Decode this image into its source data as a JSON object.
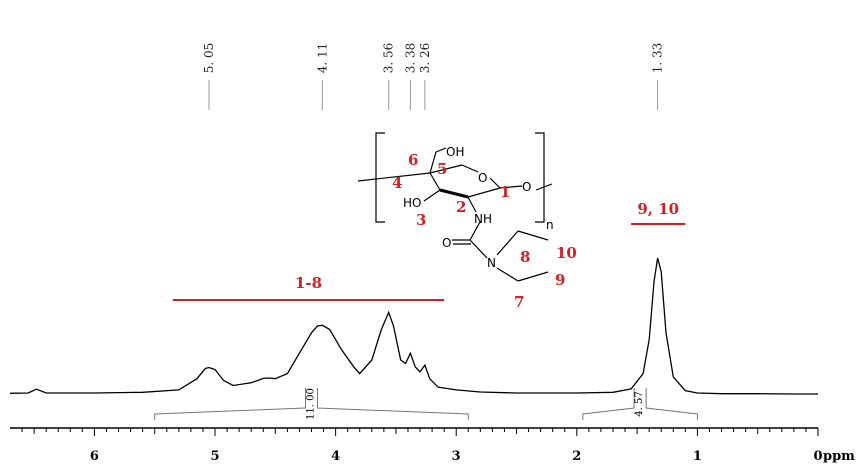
{
  "colors": {
    "spectrum": "#000000",
    "annotation": "#d42020",
    "peak_tick": "#999999"
  },
  "chart_data": {
    "type": "line",
    "title": "",
    "xlabel": "ppm",
    "ylabel": "",
    "x_reversed": true,
    "xlim": [
      6.7,
      0.0
    ],
    "x_ticks": [
      "6",
      "5",
      "4",
      "3",
      "2",
      "1",
      "0"
    ],
    "peak_labels": [
      "5. 05",
      "4. 11",
      "3. 56",
      "3. 38",
      "3. 26",
      "1. 33"
    ],
    "peak_positions": [
      5.05,
      4.11,
      3.56,
      3.38,
      3.26,
      1.33
    ],
    "integrals": [
      {
        "from": 5.5,
        "to": 2.9,
        "value_label": "11. 00",
        "value": 11.0
      },
      {
        "from": 1.95,
        "to": 1.0,
        "value_label": "4. 57",
        "value": 4.57
      }
    ],
    "annotations": [
      {
        "label": "1-8",
        "from": 5.35,
        "to": 3.1
      },
      {
        "label": "9, 10",
        "from": 1.55,
        "to": 1.1
      }
    ],
    "series": [
      {
        "x": [
          6.7,
          6.55,
          6.48,
          6.4,
          6.0,
          5.6,
          5.3,
          5.15,
          5.08,
          5.05,
          5.0,
          4.93,
          4.85,
          4.7,
          4.6,
          4.55,
          4.5,
          4.4,
          4.3,
          4.2,
          4.15,
          4.11,
          4.05,
          3.95,
          3.85,
          3.8,
          3.7,
          3.62,
          3.56,
          3.52,
          3.46,
          3.42,
          3.38,
          3.34,
          3.3,
          3.26,
          3.22,
          3.15,
          3.0,
          2.8,
          2.5,
          2.0,
          1.7,
          1.55,
          1.45,
          1.4,
          1.36,
          1.33,
          1.3,
          1.26,
          1.2,
          1.1,
          1.0,
          0.8,
          0.5,
          0.2,
          0.0
        ],
        "y": [
          0.2,
          0.3,
          1.4,
          0.3,
          0.3,
          0.5,
          1.2,
          4.5,
          7.5,
          7.8,
          7.2,
          4.0,
          2.5,
          3.3,
          4.6,
          4.7,
          4.5,
          6.0,
          12.0,
          18.0,
          20.0,
          20.2,
          19.0,
          13.0,
          8.0,
          6.0,
          10.0,
          19.0,
          24.0,
          20.0,
          10.0,
          9.0,
          12.0,
          8.0,
          6.5,
          8.5,
          4.5,
          2.0,
          1.2,
          0.6,
          0.3,
          0.3,
          0.5,
          1.5,
          6.0,
          16.0,
          33.0,
          40.0,
          36.0,
          18.0,
          5.0,
          1.0,
          0.3,
          0.1,
          0.1,
          0.0,
          0.0
        ]
      }
    ]
  },
  "structure": {
    "atoms": {
      "oh_top": "OH",
      "oh_left": "HO",
      "nh": "NH",
      "n": "N",
      "o_ring": "O",
      "subscript": "n"
    },
    "numbers": [
      "1",
      "2",
      "3",
      "4",
      "5",
      "6",
      "7",
      "8",
      "9",
      "10"
    ]
  }
}
